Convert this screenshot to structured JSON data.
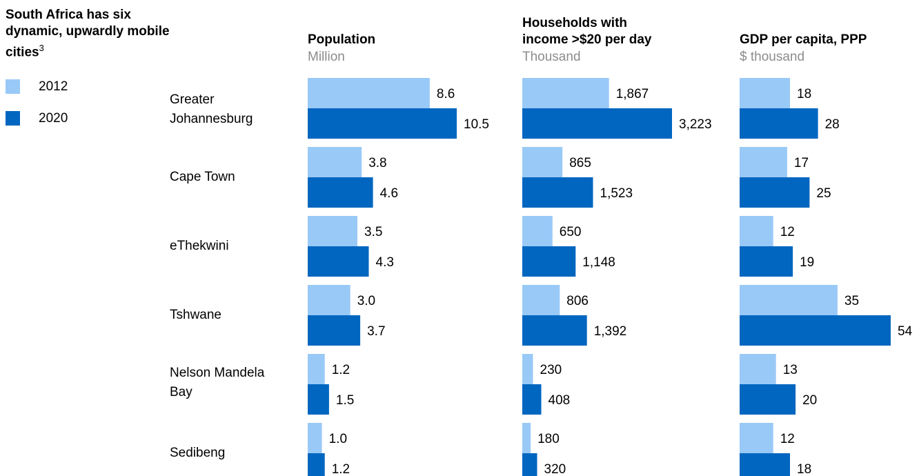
{
  "title": "South Africa has six dynamic, upwardly mobile cities",
  "title_footnote": "3",
  "legend": [
    {
      "label": "2012",
      "color": "#99c9f7"
    },
    {
      "label": "2020",
      "color": "#0066c0"
    }
  ],
  "chart_data": {
    "type": "bar",
    "orientation": "horizontal",
    "categories": [
      "Greater Johannesburg",
      "Cape Town",
      "eThekwini",
      "Tshwane",
      "Nelson Mandela Bay",
      "Sedibeng"
    ],
    "category_lines": [
      [
        "Greater",
        "Johannesburg"
      ],
      [
        "Cape Town"
      ],
      [
        "eThekwini"
      ],
      [
        "Tshwane"
      ],
      [
        "Nelson Mandela",
        "Bay"
      ],
      [
        "Sedibeng"
      ]
    ],
    "panels": [
      {
        "title_lines": [
          "Population"
        ],
        "unit": "Million",
        "xlim": [
          0,
          10.5
        ],
        "series": [
          {
            "name": "2012",
            "values": [
              8.6,
              3.8,
              3.5,
              3.0,
              1.2,
              1.0
            ],
            "labels": [
              "8.6",
              "3.8",
              "3.5",
              "3.0",
              "1.2",
              "1.0"
            ]
          },
          {
            "name": "2020",
            "values": [
              10.5,
              4.6,
              4.3,
              3.7,
              1.5,
              1.2
            ],
            "labels": [
              "10.5",
              "4.6",
              "4.3",
              "3.7",
              "1.5",
              "1.2"
            ]
          }
        ]
      },
      {
        "title_lines": [
          "Households with",
          "income >$20 per day"
        ],
        "unit": "Thousand",
        "xlim": [
          0,
          3223
        ],
        "series": [
          {
            "name": "2012",
            "values": [
              1867,
              865,
              650,
              806,
              230,
              180
            ],
            "labels": [
              "1,867",
              "865",
              "650",
              "806",
              "230",
              "180"
            ]
          },
          {
            "name": "2020",
            "values": [
              3223,
              1523,
              1148,
              1392,
              408,
              320
            ],
            "labels": [
              "3,223",
              "1,523",
              "1,148",
              "1,392",
              "408",
              "320"
            ]
          }
        ]
      },
      {
        "title_lines": [
          "GDP per capita, PPP"
        ],
        "unit": "$ thousand",
        "xlim": [
          0,
          54
        ],
        "series": [
          {
            "name": "2012",
            "values": [
              18,
              17,
              12,
              35,
              13,
              12
            ],
            "labels": [
              "18",
              "17",
              "12",
              "35",
              "13",
              "12"
            ]
          },
          {
            "name": "2020",
            "values": [
              28,
              25,
              19,
              54,
              20,
              18
            ],
            "labels": [
              "28",
              "25",
              "19",
              "54",
              "20",
              "18"
            ]
          }
        ]
      }
    ]
  }
}
